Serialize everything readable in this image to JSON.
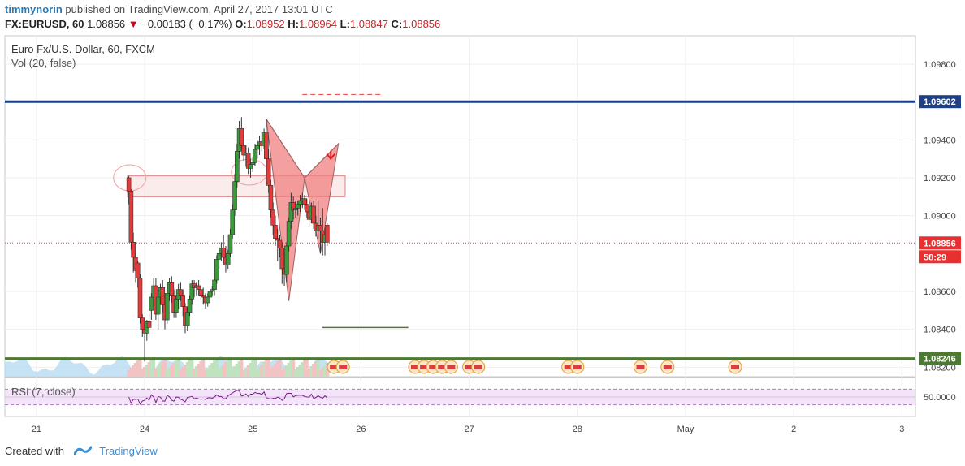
{
  "header": {
    "user": "timmynorin",
    "published": "published on TradingView.com, April 27, 2017 13:01 UTC",
    "symbol": "FX:EURUSD, 60",
    "last": "1.08856",
    "change": "−0.00183 (−0.17%)",
    "o_label": "O:",
    "o": "1.08952",
    "h_label": "H:",
    "h": "1.08964",
    "l_label": "L:",
    "l": "1.08847",
    "c_label": "C:",
    "c": "1.08856"
  },
  "legend": {
    "title": "Euro Fx/U.S. Dollar, 60, FXCM",
    "vol": "Vol (20, false)",
    "rsi": "RSI (7, close)"
  },
  "footer": {
    "created_with": "Created with",
    "brand": "TradingView"
  },
  "colors": {
    "up": "#3a9a3a",
    "down": "#e23b3b",
    "resistance": "#1f3f86",
    "support": "#4d7a33",
    "zone_fill": "#f8e0e0",
    "zone_border": "#d88080",
    "pattern_fill": "#f08080",
    "rsi_line": "#7b1f8a",
    "rsi_band": "#f3e4fa"
  },
  "chart_data": {
    "type": "candlestick",
    "title": "Euro Fx/U.S. Dollar, 60, FXCM",
    "y_ticks": [
      "1.09800",
      "1.09400",
      "1.09200",
      "1.09000",
      "1.08600",
      "1.08400",
      "1.08200"
    ],
    "ylim": [
      1.0815,
      1.0995
    ],
    "price_labels": [
      {
        "name": "resistance",
        "value": "1.09602"
      },
      {
        "name": "current",
        "value": "1.08856"
      },
      {
        "name": "countdown",
        "value": "58:29"
      },
      {
        "name": "support",
        "value": "1.08246"
      }
    ],
    "x_ticks": [
      {
        "label": "21",
        "t": 0
      },
      {
        "label": "24",
        "t": 24
      },
      {
        "label": "25",
        "t": 48
      },
      {
        "label": "26",
        "t": 72
      },
      {
        "label": "27",
        "t": 96
      },
      {
        "label": "28",
        "t": 120
      },
      {
        "label": "May",
        "t": 144
      },
      {
        "label": "2",
        "t": 168
      },
      {
        "label": "3",
        "t": 192
      }
    ],
    "xlim": [
      -7,
      195
    ],
    "levels": {
      "resistance": 1.09602,
      "support": 1.08246,
      "current": 1.08856,
      "target": 1.0841,
      "upper_dash": 1.0964
    },
    "zone": {
      "top": 1.0921,
      "bottom": 1.091
    },
    "ohlc": [
      [
        20.5,
        1.092,
        1.0921,
        1.0906,
        1.0913
      ],
      [
        21,
        1.0913,
        1.0914,
        1.0882,
        1.0886
      ],
      [
        21.5,
        1.0886,
        1.0891,
        1.087,
        1.0878
      ],
      [
        22,
        1.0878,
        1.088,
        1.0865,
        1.0871
      ],
      [
        22.5,
        1.0875,
        1.0876,
        1.0862,
        1.0867
      ],
      [
        23,
        1.0867,
        1.0869,
        1.0843,
        1.0846
      ],
      [
        23.5,
        1.0846,
        1.0848,
        1.0836,
        1.084
      ],
      [
        24,
        1.084,
        1.0842,
        1.0823,
        1.0838
      ],
      [
        24.5,
        1.0838,
        1.0845,
        1.0834,
        1.0844
      ],
      [
        25,
        1.0844,
        1.0849,
        1.0836,
        1.0841
      ],
      [
        25.5,
        1.085,
        1.0859,
        1.0845,
        1.0857
      ],
      [
        26,
        1.0857,
        1.0867,
        1.0852,
        1.0863
      ],
      [
        26.5,
        1.0863,
        1.0867,
        1.0845,
        1.0848
      ],
      [
        27,
        1.0848,
        1.0859,
        1.084,
        1.0857
      ],
      [
        27.5,
        1.0857,
        1.0864,
        1.0853,
        1.0862
      ],
      [
        28,
        1.0862,
        1.0866,
        1.0849,
        1.0853
      ],
      [
        28.5,
        1.0853,
        1.0857,
        1.084,
        1.0845
      ],
      [
        29,
        1.0845,
        1.0863,
        1.0843,
        1.0859
      ],
      [
        29.5,
        1.0859,
        1.0867,
        1.0855,
        1.0865
      ],
      [
        30,
        1.0865,
        1.0868,
        1.0854,
        1.0858
      ],
      [
        30.5,
        1.0858,
        1.0861,
        1.0846,
        1.0849
      ],
      [
        31,
        1.0849,
        1.0858,
        1.0846,
        1.0856
      ],
      [
        31.5,
        1.0856,
        1.0864,
        1.0851,
        1.0861
      ],
      [
        32,
        1.0861,
        1.0865,
        1.0855,
        1.0858
      ],
      [
        32.5,
        1.0858,
        1.0861,
        1.0847,
        1.0852
      ],
      [
        33,
        1.0852,
        1.0854,
        1.0838,
        1.0842
      ],
      [
        33.5,
        1.0842,
        1.0852,
        1.0839,
        1.0849
      ],
      [
        34,
        1.0849,
        1.0858,
        1.0847,
        1.0856
      ],
      [
        34.5,
        1.0856,
        1.0866,
        1.0853,
        1.0864
      ],
      [
        35,
        1.0864,
        1.0866,
        1.0857,
        1.0862
      ],
      [
        35.5,
        1.0862,
        1.0865,
        1.0858,
        1.0863
      ],
      [
        36,
        1.0863,
        1.0866,
        1.0858,
        1.0861
      ],
      [
        36.5,
        1.0861,
        1.0864,
        1.0856,
        1.0858
      ],
      [
        37,
        1.0858,
        1.0862,
        1.0853,
        1.0857
      ],
      [
        37.5,
        1.0857,
        1.0859,
        1.0851,
        1.0854
      ],
      [
        38,
        1.0854,
        1.0859,
        1.0852,
        1.0857
      ],
      [
        38.5,
        1.0857,
        1.0862,
        1.0855,
        1.086
      ],
      [
        39,
        1.086,
        1.0863,
        1.0858,
        1.0861
      ],
      [
        39.5,
        1.0861,
        1.0868,
        1.0858,
        1.0866
      ],
      [
        40,
        1.0866,
        1.0879,
        1.0864,
        1.0877
      ],
      [
        40.5,
        1.0877,
        1.0882,
        1.0872,
        1.088
      ],
      [
        41,
        1.088,
        1.0886,
        1.0876,
        1.0883
      ],
      [
        41.5,
        1.0883,
        1.089,
        1.0875,
        1.0878
      ],
      [
        42,
        1.0878,
        1.0884,
        1.087,
        1.0874
      ],
      [
        42.5,
        1.0874,
        1.0882,
        1.0872,
        1.088
      ],
      [
        43,
        1.088,
        1.0893,
        1.0878,
        1.089
      ],
      [
        43.5,
        1.089,
        1.0906,
        1.0888,
        1.0903
      ],
      [
        44,
        1.0903,
        1.0922,
        1.09,
        1.0918
      ],
      [
        44.5,
        1.0918,
        1.0938,
        1.0915,
        1.0934
      ],
      [
        45,
        1.0934,
        1.095,
        1.093,
        1.0946
      ],
      [
        45.5,
        1.0946,
        1.0952,
        1.0935,
        1.0937
      ],
      [
        46,
        1.0937,
        1.0942,
        1.0929,
        1.0932
      ],
      [
        46.5,
        1.0932,
        1.0937,
        1.0926,
        1.0933
      ],
      [
        47,
        1.0933,
        1.0936,
        1.0922,
        1.0925
      ],
      [
        47.5,
        1.0925,
        1.093,
        1.092,
        1.0927
      ],
      [
        48,
        1.0927,
        1.0931,
        1.0923,
        1.0928
      ],
      [
        48.5,
        1.0928,
        1.0938,
        1.0926,
        1.0935
      ],
      [
        49,
        1.0935,
        1.094,
        1.093,
        1.0937
      ],
      [
        49.5,
        1.0937,
        1.0942,
        1.0932,
        1.0939
      ],
      [
        50,
        1.0939,
        1.0944,
        1.0934,
        1.0937
      ],
      [
        50.5,
        1.0937,
        1.0946,
        1.0935,
        1.0944
      ],
      [
        51,
        1.0944,
        1.0951,
        1.0926,
        1.093
      ],
      [
        51.5,
        1.093,
        1.0935,
        1.0912,
        1.0916
      ],
      [
        52,
        1.0916,
        1.0919,
        1.0899,
        1.0903
      ],
      [
        52.5,
        1.0903,
        1.0907,
        1.089,
        1.0895
      ],
      [
        53,
        1.0895,
        1.09,
        1.0884,
        1.0888
      ],
      [
        53.5,
        1.0888,
        1.0893,
        1.0876,
        1.0887
      ],
      [
        54,
        1.0887,
        1.089,
        1.0878,
        1.0883
      ],
      [
        54.5,
        1.0883,
        1.0886,
        1.0864,
        1.0872
      ],
      [
        55,
        1.0872,
        1.0876,
        1.0863,
        1.0869
      ],
      [
        55.5,
        1.0869,
        1.0886,
        1.0865,
        1.0884
      ],
      [
        56,
        1.0884,
        1.0899,
        1.0881,
        1.0897
      ],
      [
        56.5,
        1.0897,
        1.0912,
        1.0893,
        1.0907
      ],
      [
        57,
        1.0907,
        1.091,
        1.0898,
        1.0903
      ],
      [
        57.5,
        1.0903,
        1.0908,
        1.0899,
        1.0904
      ],
      [
        58,
        1.0904,
        1.0908,
        1.09,
        1.0906
      ],
      [
        58.5,
        1.0906,
        1.0911,
        1.0902,
        1.0908
      ],
      [
        59,
        1.0908,
        1.0912,
        1.0904,
        1.0909
      ],
      [
        59.5,
        1.0909,
        1.0911,
        1.0903,
        1.0906
      ],
      [
        60,
        1.0906,
        1.0909,
        1.0899,
        1.0902
      ],
      [
        60.5,
        1.0902,
        1.0906,
        1.0894,
        1.0898
      ],
      [
        61,
        1.0898,
        1.0907,
        1.0896,
        1.0905
      ],
      [
        61.5,
        1.0905,
        1.0908,
        1.0893,
        1.0896
      ],
      [
        62,
        1.0896,
        1.09,
        1.0889,
        1.0892
      ],
      [
        62.5,
        1.0892,
        1.0908,
        1.0888,
        1.0895
      ],
      [
        63,
        1.0895,
        1.0899,
        1.088,
        1.0892
      ],
      [
        63.5,
        1.0892,
        1.0904,
        1.0879,
        1.0886
      ],
      [
        64,
        1.0886,
        1.0893,
        1.0879,
        1.089
      ],
      [
        64.5,
        1.0895,
        1.0896,
        1.0884,
        1.0886
      ]
    ],
    "volume_scale_note": "",
    "harmonic_pattern": [
      [
        51,
        1.0951
      ],
      [
        56,
        1.0855
      ],
      [
        59.5,
        1.092
      ],
      [
        63,
        1.088
      ],
      [
        67,
        1.0938
      ]
    ]
  }
}
